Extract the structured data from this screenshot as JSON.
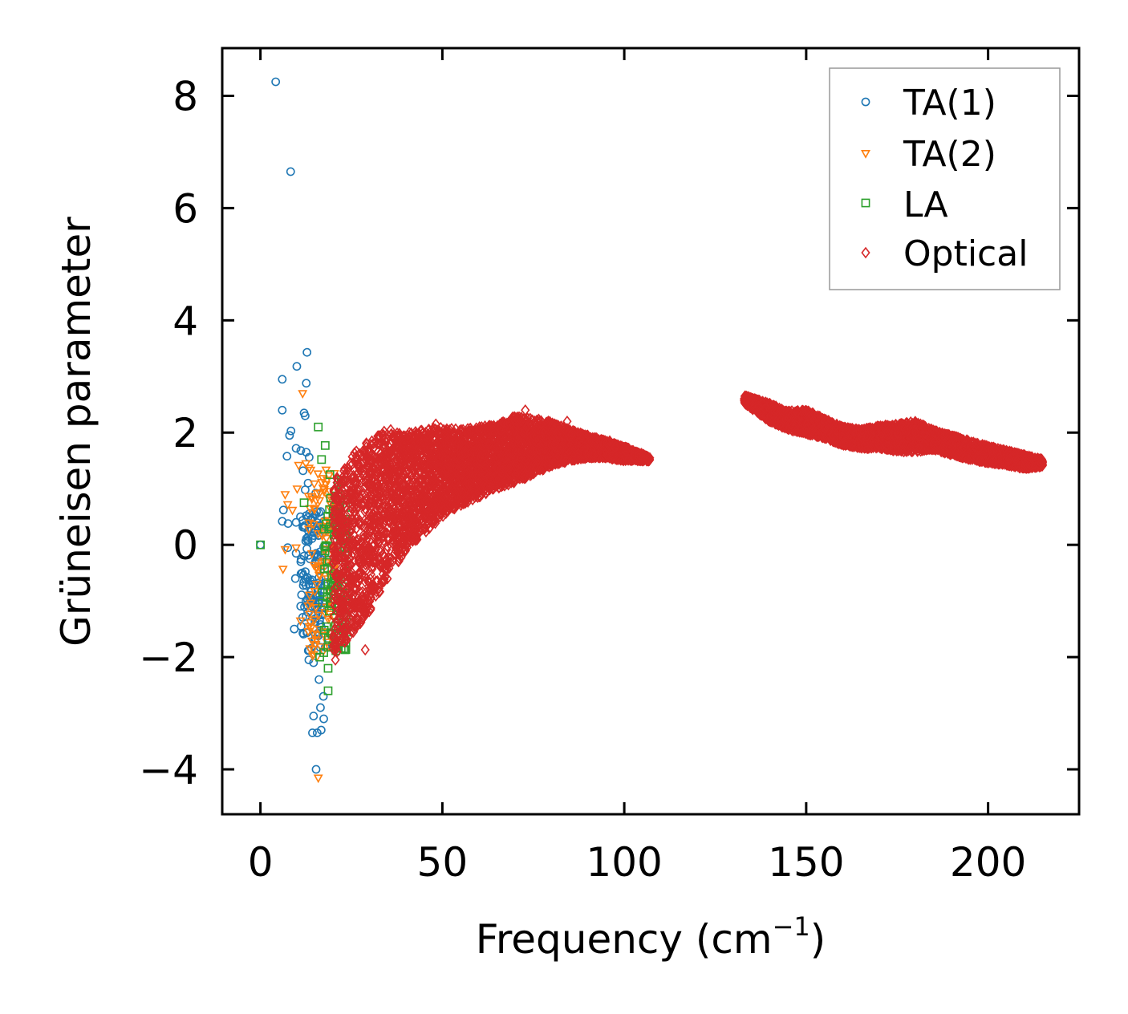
{
  "chart_data": {
    "type": "scatter",
    "title": "",
    "xlabel": "Frequency (cm",
    "xlabel_sup": "−1",
    "xlabel_close": ")",
    "ylabel": "Grüneisen parameter",
    "xlim": [
      -10.5,
      225
    ],
    "ylim": [
      -4.8,
      8.85
    ],
    "xticks": [
      0,
      50,
      100,
      150,
      200
    ],
    "xtick_labels": [
      "0",
      "50",
      "100",
      "150",
      "200"
    ],
    "yticks": [
      -4,
      -2,
      0,
      2,
      4,
      6,
      8
    ],
    "ytick_labels": [
      "−4",
      "−2",
      "0",
      "2",
      "4",
      "6",
      "8"
    ],
    "grid": false,
    "legend_position": "top-right",
    "series": [
      {
        "name": "TA(1)",
        "marker": "circle",
        "color": "#1f77b4",
        "points": [
          [
            0,
            0
          ],
          [
            4.2,
            8.25
          ],
          [
            8.3,
            6.65
          ],
          [
            6,
            2.95
          ],
          [
            10,
            3.18
          ],
          [
            12.8,
            3.43
          ],
          [
            12.6,
            2.88
          ],
          [
            6,
            2.4
          ],
          [
            12.3,
            2.3
          ],
          [
            12,
            2.35
          ],
          [
            8,
            1.95
          ],
          [
            8.4,
            2.03
          ],
          [
            7.3,
            1.58
          ],
          [
            9.8,
            1.72
          ],
          [
            11.1,
            1.68
          ],
          [
            12.6,
            1.65
          ],
          [
            13.4,
            1.56
          ],
          [
            11.7,
            1.32
          ],
          [
            13.1,
            1.1
          ],
          [
            12.3,
            0.98
          ],
          [
            15.2,
            0.92
          ],
          [
            6.3,
            0.62
          ],
          [
            6,
            0.42
          ],
          [
            7.6,
            0.38
          ],
          [
            9.8,
            0.4
          ],
          [
            11,
            0.5
          ],
          [
            12.6,
            0.52
          ],
          [
            14.6,
            0.55
          ],
          [
            16.5,
            0.35
          ],
          [
            7.5,
            -0.05
          ],
          [
            9.8,
            -0.15
          ],
          [
            12,
            -0.2
          ],
          [
            13.6,
            -0.25
          ],
          [
            15.1,
            -0.3
          ],
          [
            9.6,
            -0.6
          ],
          [
            11.5,
            -0.5
          ],
          [
            13.3,
            -0.7
          ],
          [
            16.3,
            -0.9
          ],
          [
            12.5,
            -1
          ],
          [
            14.2,
            -1.1
          ],
          [
            17.1,
            -1.25
          ],
          [
            11.2,
            -1.45
          ],
          [
            9.3,
            -1.5
          ],
          [
            15.1,
            -1.6
          ],
          [
            16.9,
            -1.7
          ],
          [
            13.3,
            -2.05
          ],
          [
            14.6,
            -2.1
          ],
          [
            16.1,
            -2.4
          ],
          [
            17.3,
            -2.7
          ],
          [
            14.6,
            -3.05
          ],
          [
            16.5,
            -2.9
          ],
          [
            17.4,
            -3.1
          ],
          [
            14.3,
            -3.35
          ],
          [
            15.6,
            -3.35
          ],
          [
            16.7,
            -3.3
          ],
          [
            15.3,
            -4
          ]
        ],
        "cluster": {
          "x": [
            11,
            18
          ],
          "y": [
            -1.9,
            0.6
          ],
          "count": 120
        }
      },
      {
        "name": "TA(2)",
        "marker": "triangle-down",
        "color": "#ff7f0e",
        "points": [
          [
            11.6,
            2.7
          ],
          [
            6.8,
            0.9
          ],
          [
            7.5,
            0.72
          ],
          [
            10.5,
            1.42
          ],
          [
            12.5,
            1.45
          ],
          [
            10.1,
            1
          ],
          [
            13.6,
            0.65
          ],
          [
            6.8,
            -0.08
          ],
          [
            6.2,
            -0.43
          ],
          [
            11,
            -1.35
          ],
          [
            15.9,
            -4.15
          ],
          [
            14.6,
            -1.95
          ],
          [
            16.2,
            -1.5
          ],
          [
            17.7,
            -1.2
          ],
          [
            19.2,
            -0.85
          ],
          [
            18.5,
            0.25
          ],
          [
            17.5,
            0.95
          ],
          [
            8.8,
            0.62
          ],
          [
            9.8,
            -0.05
          ]
        ],
        "cluster": {
          "x": [
            13,
            21
          ],
          "y": [
            -2,
            1.4
          ],
          "count": 110
        }
      },
      {
        "name": "LA",
        "marker": "square",
        "color": "#2ca02c",
        "points": [
          [
            0,
            0
          ],
          [
            15.9,
            2.1
          ],
          [
            17.8,
            1.77
          ],
          [
            16.8,
            1.52
          ],
          [
            19.1,
            1.25
          ],
          [
            21.4,
            1.12
          ],
          [
            22.2,
            1.15
          ],
          [
            12,
            0.75
          ],
          [
            18.6,
            -2.6
          ],
          [
            18.6,
            -2.2
          ],
          [
            17.4,
            -1.92
          ],
          [
            16.3,
            -2
          ],
          [
            20.5,
            0.95
          ],
          [
            21.7,
            0.4
          ]
        ],
        "cluster": {
          "x": [
            17,
            24
          ],
          "y": [
            -1.9,
            0.9
          ],
          "count": 120
        }
      },
      {
        "name": "Optical",
        "marker": "diamond",
        "color": "#d62728",
        "points": [
          [
            28.8,
            -1.87
          ],
          [
            20.6,
            -2.05
          ],
          [
            26,
            1.5
          ],
          [
            29.6,
            1.55
          ],
          [
            34,
            2.02
          ],
          [
            35.8,
            2.05
          ],
          [
            38.5,
            1.9
          ],
          [
            42.1,
            1.75
          ],
          [
            48.2,
            2.15
          ],
          [
            52.4,
            1.8
          ],
          [
            60.8,
            2.1
          ],
          [
            72.8,
            2.4
          ],
          [
            84.3,
            2.2
          ],
          [
            96,
            1.85
          ],
          [
            107,
            1.55
          ],
          [
            24.3,
            -1.3
          ],
          [
            22.8,
            -1.15
          ],
          [
            27.3,
            1.4
          ]
        ],
        "band": [
          [
            20,
            -2,
            1.2
          ],
          [
            25,
            -1.6,
            1.6
          ],
          [
            30,
            -1.2,
            1.9
          ],
          [
            35,
            -0.6,
            2.0
          ],
          [
            40,
            -0.1,
            2.0
          ],
          [
            45,
            0.2,
            2.05
          ],
          [
            50,
            0.5,
            2.1
          ],
          [
            55,
            0.7,
            2.05
          ],
          [
            60,
            0.85,
            2.1
          ],
          [
            65,
            1.0,
            2.15
          ],
          [
            70,
            1.1,
            2.3
          ],
          [
            75,
            1.25,
            2.25
          ],
          [
            80,
            1.4,
            2.2
          ],
          [
            85,
            1.5,
            2.05
          ],
          [
            90,
            1.55,
            1.95
          ],
          [
            95,
            1.55,
            1.85
          ],
          [
            100,
            1.5,
            1.75
          ],
          [
            104,
            1.5,
            1.65
          ],
          [
            107,
            1.5,
            1.55
          ],
          [
            133,
            2.52,
            2.66
          ],
          [
            140,
            2.2,
            2.52
          ],
          [
            145,
            2.05,
            2.38
          ],
          [
            150,
            1.98,
            2.4
          ],
          [
            155,
            1.9,
            2.25
          ],
          [
            160,
            1.78,
            2.1
          ],
          [
            165,
            1.72,
            2.05
          ],
          [
            170,
            1.72,
            2.12
          ],
          [
            175,
            1.66,
            2.15
          ],
          [
            180,
            1.66,
            2.2
          ],
          [
            185,
            1.7,
            2.05
          ],
          [
            190,
            1.6,
            1.95
          ],
          [
            195,
            1.52,
            1.85
          ],
          [
            200,
            1.46,
            1.76
          ],
          [
            205,
            1.42,
            1.68
          ],
          [
            210,
            1.36,
            1.6
          ],
          [
            215,
            1.4,
            1.52
          ]
        ]
      }
    ]
  }
}
